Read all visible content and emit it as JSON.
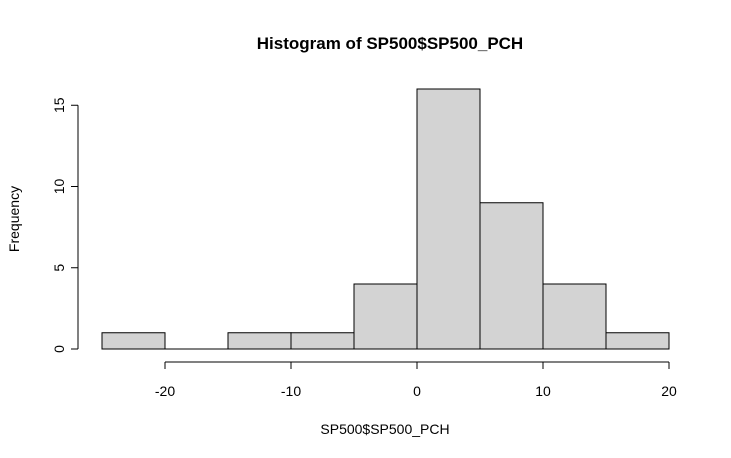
{
  "chart_data": {
    "type": "bar",
    "title": "Histogram of SP500$SP500_PCH",
    "xlabel": "SP500$SP500_PCH",
    "ylabel": "Frequency",
    "bins": [
      {
        "from": -25,
        "to": -20,
        "count": 1
      },
      {
        "from": -20,
        "to": -15,
        "count": 0
      },
      {
        "from": -15,
        "to": -10,
        "count": 1
      },
      {
        "from": -10,
        "to": -5,
        "count": 1
      },
      {
        "from": -5,
        "to": 0,
        "count": 4
      },
      {
        "from": 0,
        "to": 5,
        "count": 16
      },
      {
        "from": 5,
        "to": 10,
        "count": 9
      },
      {
        "from": 10,
        "to": 15,
        "count": 4
      },
      {
        "from": 15,
        "to": 20,
        "count": 1
      }
    ],
    "xlim": [
      -25,
      20
    ],
    "ylim": [
      0,
      16
    ],
    "x_ticks": [
      -20,
      -10,
      0,
      10,
      20
    ],
    "y_ticks": [
      0,
      5,
      10,
      15
    ],
    "bar_color": "#d3d3d3",
    "border_color": "#000000",
    "grid": false
  }
}
